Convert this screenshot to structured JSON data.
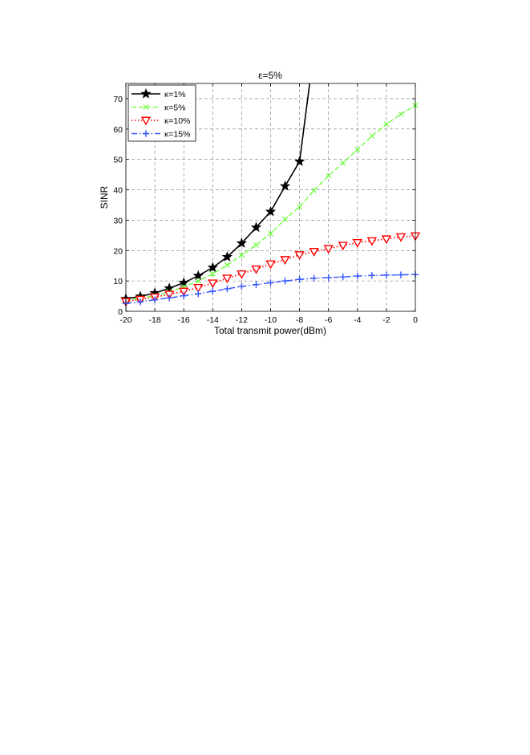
{
  "chart_data": {
    "type": "line",
    "title": "ε=5%",
    "xlabel": "Total transmit power(dBm)",
    "ylabel": "SINR",
    "xlim": [
      -20,
      0
    ],
    "ylim": [
      0,
      75
    ],
    "grid": true,
    "legend_position": "top-left",
    "xticks": [
      -20,
      -18,
      -16,
      -14,
      -12,
      -10,
      -8,
      -6,
      -4,
      -2,
      0
    ],
    "yticks": [
      0,
      10,
      20,
      30,
      40,
      50,
      60,
      70
    ],
    "x": [
      -20,
      -19,
      -18,
      -17,
      -16,
      -15,
      -14,
      -13,
      -12,
      -11,
      -10,
      -9,
      -8,
      -7,
      -6,
      -5,
      -4,
      -3,
      -2,
      -1,
      0
    ],
    "series": [
      {
        "name": "κ=1%",
        "color": "#000000",
        "line_style": "solid",
        "marker": "star",
        "values": [
          4.1,
          4.9,
          6.0,
          7.6,
          9.4,
          11.7,
          14.4,
          17.9,
          22.4,
          27.6,
          32.8,
          41.2,
          49.3,
          null,
          null,
          null,
          null,
          null,
          null,
          null,
          null
        ],
        "continues_off_chart_at": [
          -7.3,
          75
        ]
      },
      {
        "name": "κ=5%",
        "color": "#66ff33",
        "line_style": "dashed",
        "marker": "x",
        "values": [
          3.6,
          4.3,
          5.2,
          6.4,
          8.0,
          10.0,
          12.3,
          15.2,
          18.5,
          21.8,
          25.6,
          30.3,
          34.4,
          39.8,
          44.6,
          48.8,
          53.2,
          57.7,
          61.6,
          64.9,
          67.8
        ]
      },
      {
        "name": "κ=10%",
        "color": "#ff0000",
        "line_style": "dotted",
        "marker": "triangle-down",
        "values": [
          3.2,
          3.9,
          4.7,
          5.6,
          6.6,
          7.8,
          9.3,
          10.9,
          12.3,
          13.9,
          15.6,
          17.0,
          18.6,
          19.7,
          20.6,
          21.7,
          22.6,
          23.2,
          23.8,
          24.5,
          24.8
        ]
      },
      {
        "name": "κ=15%",
        "color": "#3355ff",
        "line_style": "dashdot",
        "marker": "plus",
        "values": [
          2.6,
          3.1,
          3.8,
          4.4,
          5.1,
          5.8,
          6.6,
          7.4,
          8.2,
          8.8,
          9.4,
          10.0,
          10.5,
          10.9,
          11.1,
          11.3,
          11.6,
          11.8,
          11.9,
          12.0,
          12.1
        ]
      }
    ]
  }
}
